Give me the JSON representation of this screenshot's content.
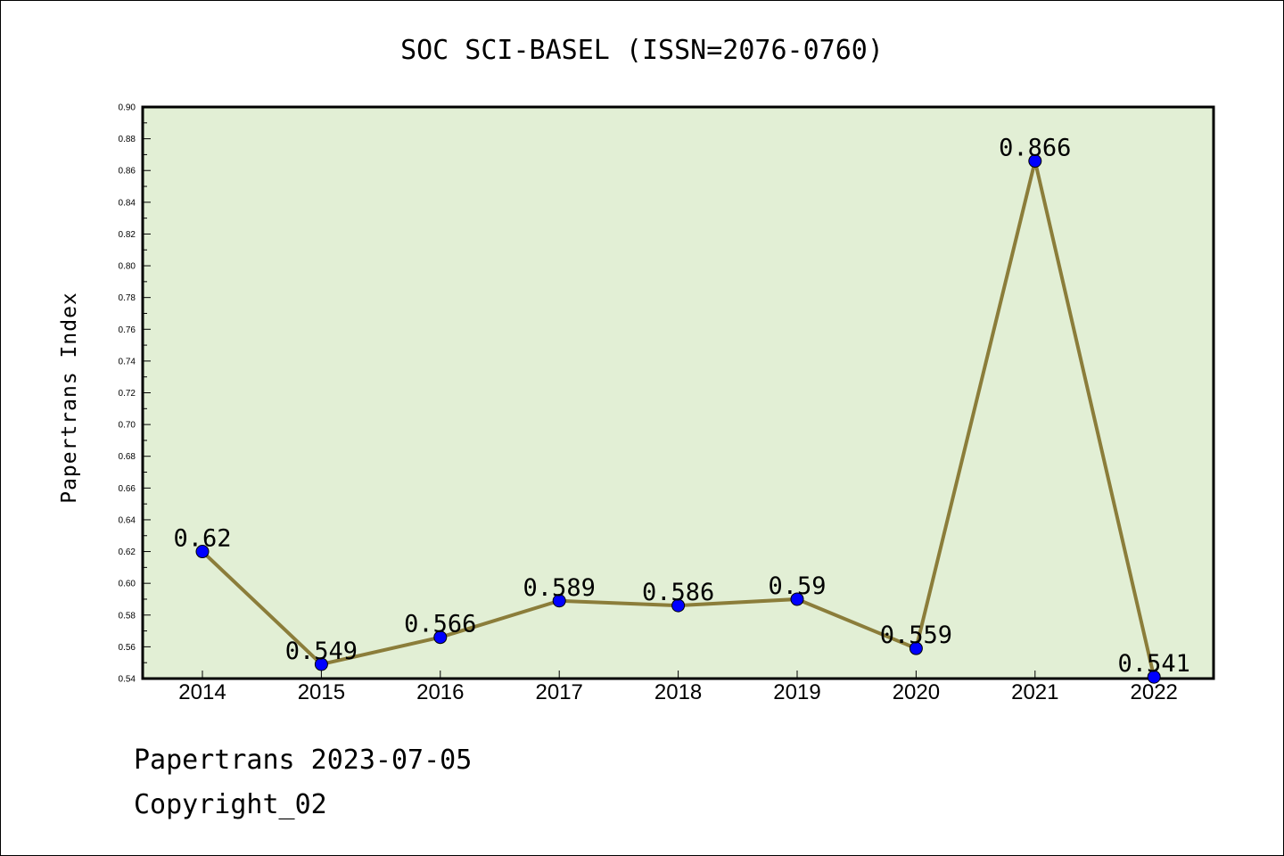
{
  "chart_data": {
    "type": "line",
    "title": "SOC SCI-BASEL (ISSN=2076-0760)",
    "xlabel": "",
    "ylabel": "Papertrans Index",
    "categories": [
      "2014",
      "2015",
      "2016",
      "2017",
      "2018",
      "2019",
      "2020",
      "2021",
      "2022"
    ],
    "values": [
      0.62,
      0.549,
      0.566,
      0.589,
      0.586,
      0.59,
      0.559,
      0.866,
      0.541
    ],
    "data_labels": [
      "0.62",
      "0.549",
      "0.566",
      "0.589",
      "0.586",
      "0.59",
      "0.559",
      "0.866",
      "0.541"
    ],
    "ylim": [
      0.54,
      0.9
    ],
    "yticks": [
      "0.54",
      "0.56",
      "0.58",
      "0.60",
      "0.62",
      "0.64",
      "0.66",
      "0.68",
      "0.70",
      "0.72",
      "0.74",
      "0.76",
      "0.78",
      "0.80",
      "0.82",
      "0.84",
      "0.86",
      "0.88",
      "0.90"
    ],
    "grid": false,
    "colors": {
      "line": "#8b7d3a",
      "marker": "#0000ff",
      "plot_background": "#e2efd5",
      "axes": "#000000"
    }
  },
  "footer": {
    "line1": "Papertrans 2023-07-05",
    "line2": "Copyright_02"
  }
}
